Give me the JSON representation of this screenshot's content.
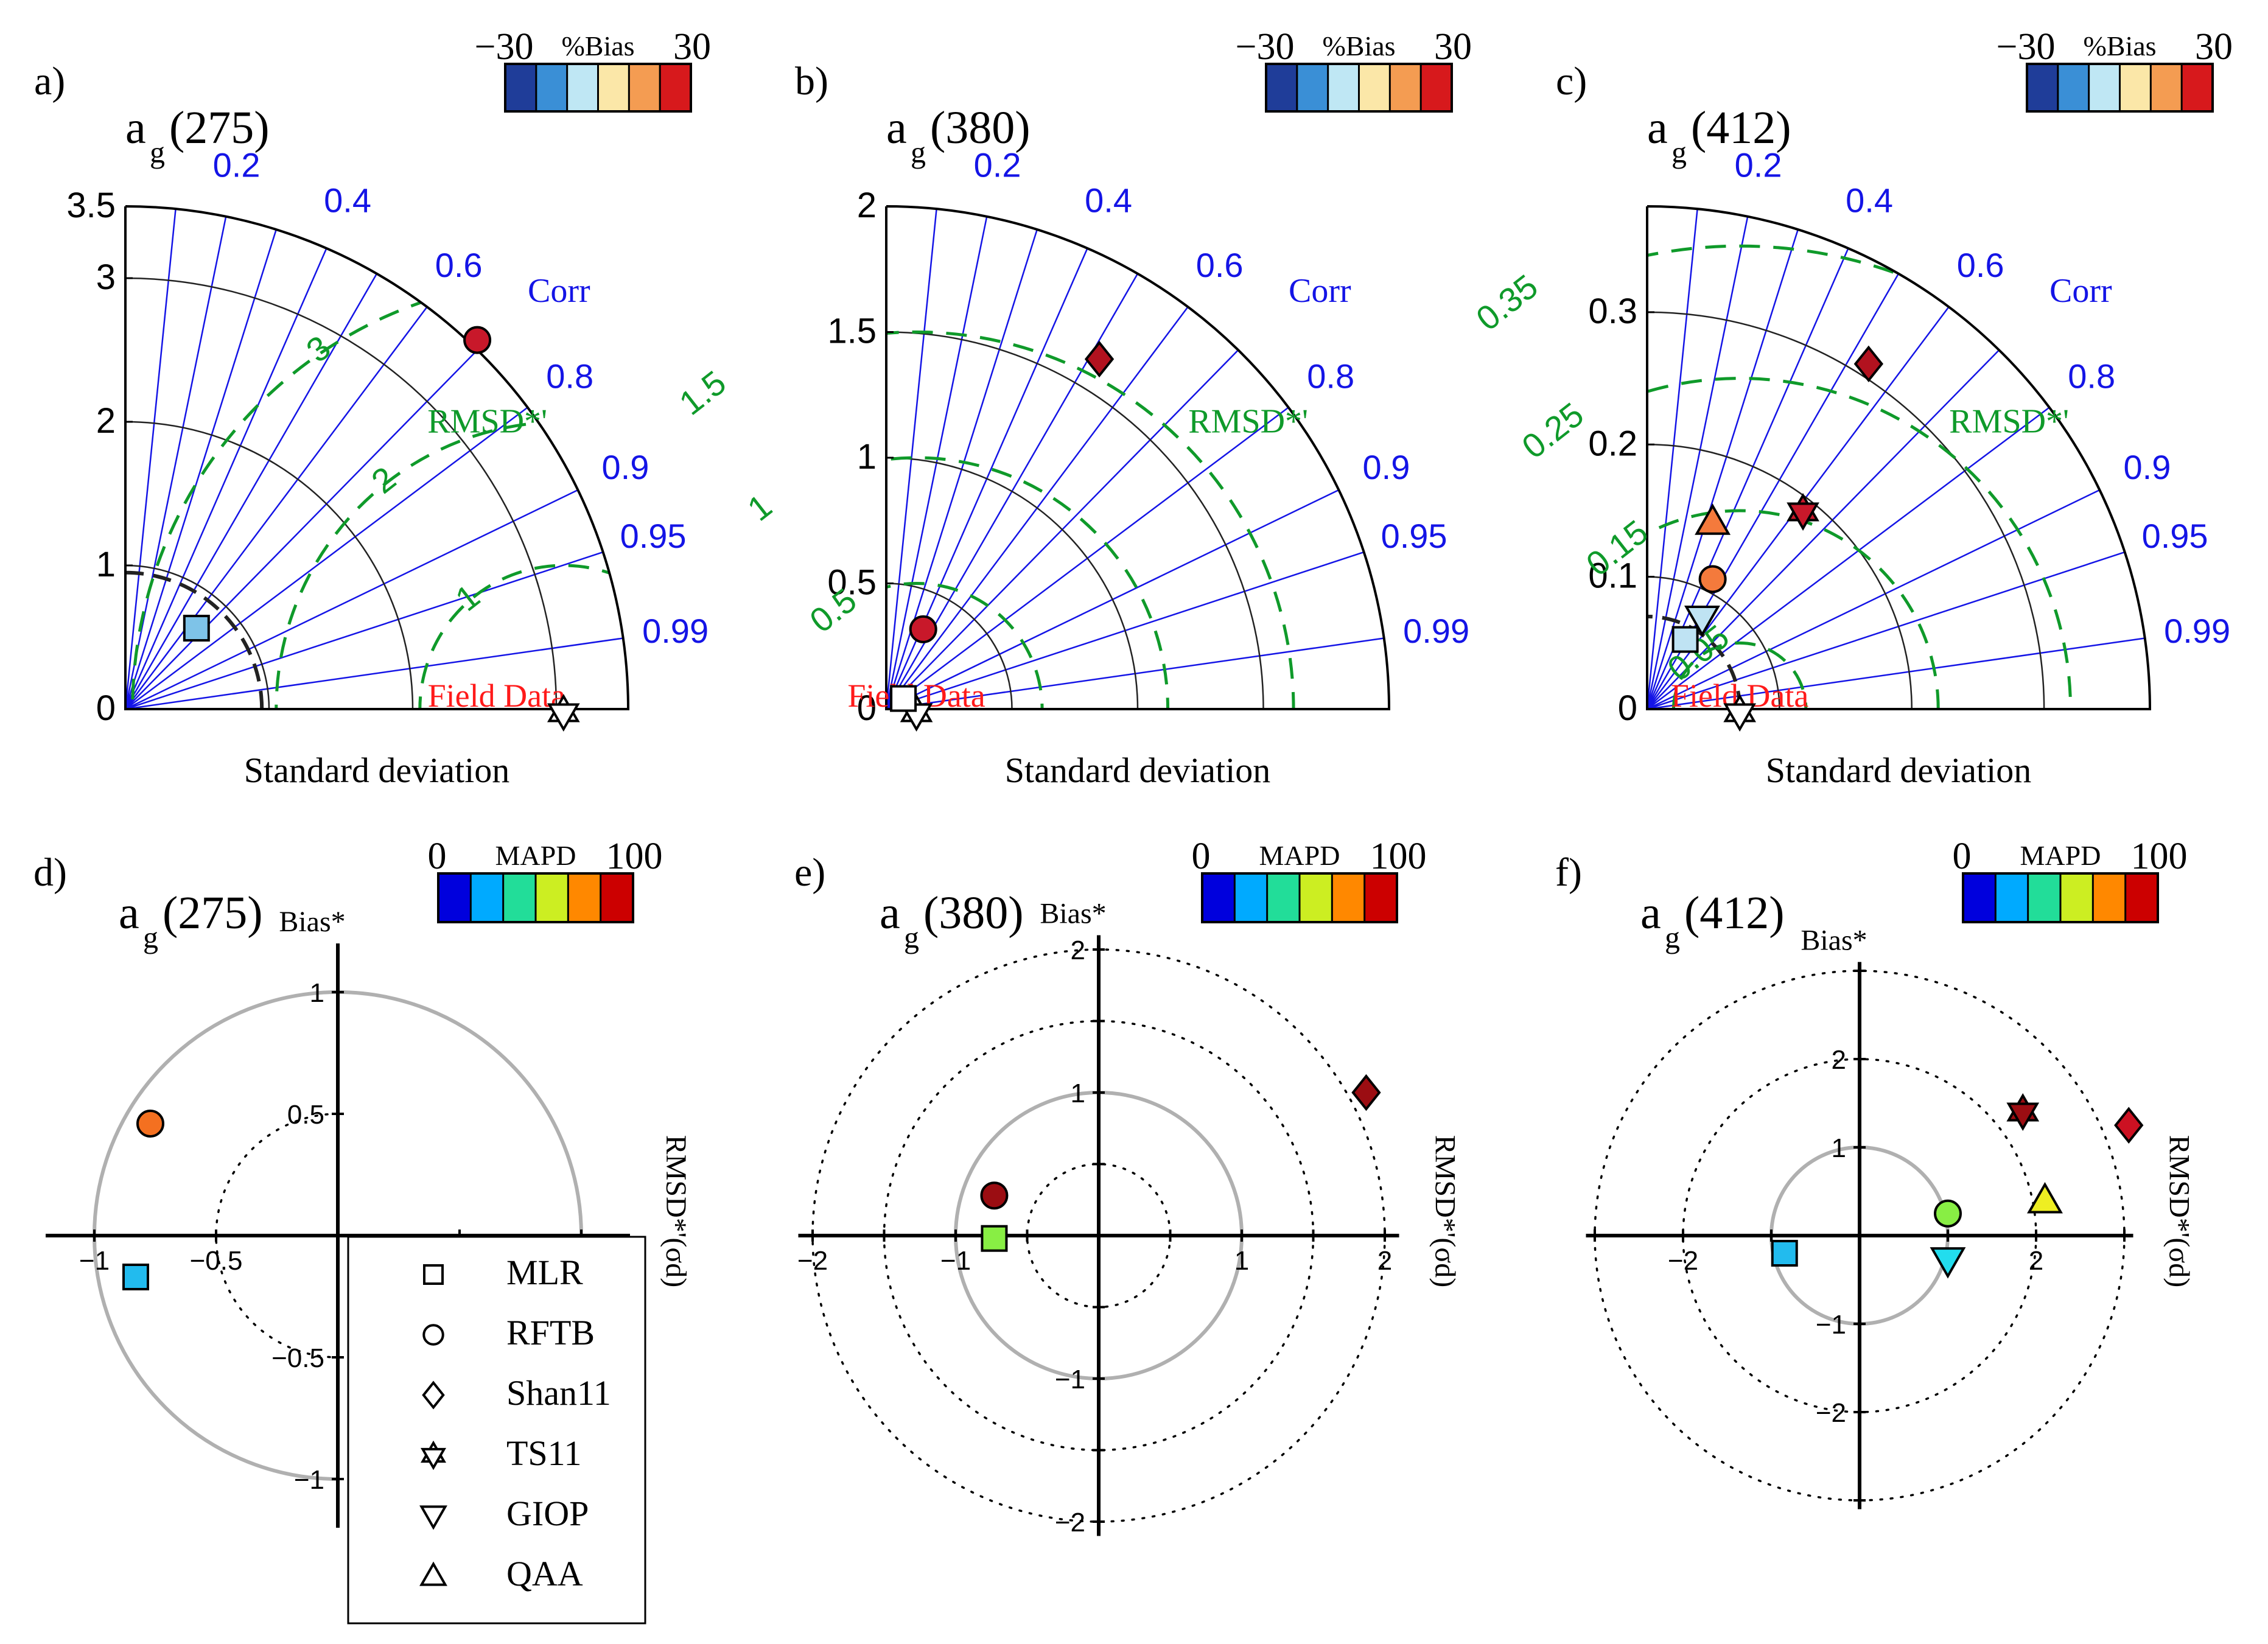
{
  "colors": {
    "corr_line": "#1414e6",
    "corr_text": "#1414e6",
    "rmsd_line": "#0f9a2a",
    "rmsd_text": "#0f9a2a",
    "field_text": "#ff1a1a",
    "grey_circle": "#b0b0b0",
    "std_circle": "#222222",
    "ref_arc": "#222222"
  },
  "text": {
    "corr_title": "Corr",
    "rmsd_title": "RMSD*'",
    "field_label": "Field Data",
    "std_xlabel": "Standard deviation",
    "bias_colorbar_title": "%Bias",
    "bias_colorbar_min": "−30",
    "bias_colorbar_max": "30",
    "mapd_colorbar_title": "MAPD",
    "mapd_colorbar_min": "0",
    "mapd_colorbar_max": "100",
    "target_ylabel": "Bias*",
    "target_xlabel": "RMSD*'(σd)",
    "title_a": "a",
    "title_g": "g"
  },
  "colorbars": {
    "bias": [
      "#1f3d99",
      "#3a8fd6",
      "#bfe7f4",
      "#fbe7a8",
      "#f49c52",
      "#d7191c"
    ],
    "mapd": [
      "#0000dd",
      "#00aaff",
      "#22dd99",
      "#ccee22",
      "#ff8800",
      "#cc0000"
    ]
  },
  "legend": [
    {
      "label": "MLR",
      "marker": "square"
    },
    {
      "label": "RFTB",
      "marker": "circle"
    },
    {
      "label": "Shan11",
      "marker": "diamond"
    },
    {
      "label": "TS11",
      "marker": "star"
    },
    {
      "label": "GIOP",
      "marker": "triangle-down"
    },
    {
      "label": "QAA",
      "marker": "triangle-up"
    }
  ],
  "chart_data": [
    {
      "type": "taylor",
      "panel": "a)",
      "band": "(275)",
      "max_std": 3.5,
      "std_ticks": [
        "0",
        "1",
        "2",
        "3",
        "3.5"
      ],
      "std_tick_values": [
        0,
        1,
        2,
        3,
        3.5
      ],
      "std_circles": [
        1,
        2,
        3
      ],
      "ref_std": 3.05,
      "corr_ticks": [
        "0.2",
        "0.4",
        "0.6",
        "0.8",
        "0.9",
        "0.95",
        "0.99"
      ],
      "corr_values": [
        0.2,
        0.4,
        0.6,
        0.8,
        0.9,
        0.95,
        0.99
      ],
      "corr_lines": [
        0.1,
        0.2,
        0.3,
        0.4,
        0.5,
        0.6,
        0.7,
        0.8,
        0.9,
        0.95,
        0.99
      ],
      "rmsd_labels": [
        "1",
        "2",
        "3"
      ],
      "rmsd_values": [
        1,
        2,
        3
      ],
      "dashed_arc": 0.95,
      "points": [
        {
          "model": "MLR",
          "marker": "square",
          "color": "#7ec3e8",
          "std": 0.75,
          "corr": 0.66
        },
        {
          "model": "RFTB",
          "marker": "circle",
          "color": "#c8182a",
          "std": 3.55,
          "corr": 0.69
        }
      ]
    },
    {
      "type": "taylor",
      "panel": "b)",
      "band": "(380)",
      "max_std": 2,
      "std_ticks": [
        "0",
        "0.5",
        "1",
        "1.5",
        "2"
      ],
      "std_tick_values": [
        0,
        0.5,
        1,
        1.5,
        2
      ],
      "std_circles": [
        0.5,
        1,
        1.5
      ],
      "ref_std": 0.12,
      "corr_ticks": [
        "0.2",
        "0.4",
        "0.6",
        "0.8",
        "0.9",
        "0.95",
        "0.99"
      ],
      "corr_values": [
        0.2,
        0.4,
        0.6,
        0.8,
        0.9,
        0.95,
        0.99
      ],
      "corr_lines": [
        0.1,
        0.2,
        0.3,
        0.4,
        0.5,
        0.6,
        0.7,
        0.8,
        0.9,
        0.95,
        0.99
      ],
      "rmsd_labels": [
        "0.5",
        "1",
        "1.5"
      ],
      "rmsd_values": [
        0.5,
        1,
        1.5
      ],
      "dashed_arc": 0,
      "points": [
        {
          "model": "MLR",
          "marker": "square",
          "color": "#ffffff",
          "std": 0.08,
          "corr": 0.85
        },
        {
          "model": "RFTB",
          "marker": "circle",
          "color": "#c8182a",
          "std": 0.35,
          "corr": 0.42
        },
        {
          "model": "Shan11",
          "marker": "diamond",
          "color": "#b2121f",
          "std": 1.63,
          "corr": 0.52
        }
      ]
    },
    {
      "type": "taylor",
      "panel": "c)",
      "band": "(412)",
      "max_std": 0.38,
      "std_ticks": [
        "0",
        "0.1",
        "0.2",
        "0.3"
      ],
      "std_tick_values": [
        0,
        0.1,
        0.2,
        0.3
      ],
      "std_circles": [
        0.1,
        0.2,
        0.3
      ],
      "ref_std": 0.07,
      "corr_ticks": [
        "0.2",
        "0.4",
        "0.6",
        "0.8",
        "0.9",
        "0.95",
        "0.99"
      ],
      "corr_values": [
        0.2,
        0.4,
        0.6,
        0.8,
        0.9,
        0.95,
        0.99
      ],
      "corr_lines": [
        0.1,
        0.2,
        0.3,
        0.4,
        0.5,
        0.6,
        0.7,
        0.8,
        0.9,
        0.95,
        0.99
      ],
      "rmsd_labels": [
        "0.05",
        "0.15",
        "0.25",
        "0.35"
      ],
      "rmsd_values": [
        0.05,
        0.15,
        0.25,
        0.35
      ],
      "dashed_arc": 0.07,
      "points": [
        {
          "model": "MLR",
          "marker": "square",
          "color": "#bfe3f3",
          "std": 0.06,
          "corr": 0.48
        },
        {
          "model": "GIOP",
          "marker": "triangle-down",
          "color": "#bfe3f3",
          "std": 0.08,
          "corr": 0.52
        },
        {
          "model": "RFTB",
          "marker": "circle",
          "color": "#f47a3c",
          "std": 0.11,
          "corr": 0.45
        },
        {
          "model": "QAA",
          "marker": "triangle-up",
          "color": "#f47a3c",
          "std": 0.15,
          "corr": 0.33
        },
        {
          "model": "TS11",
          "marker": "star",
          "color": "#c8182a",
          "std": 0.19,
          "corr": 0.62
        },
        {
          "model": "Shan11",
          "marker": "diamond",
          "color": "#b2121f",
          "std": 0.31,
          "corr": 0.54
        }
      ]
    },
    {
      "type": "target",
      "panel": "d)",
      "band": "(275)",
      "half": true,
      "range": [
        -1.2,
        1.2
      ],
      "ring_values": [
        0.5,
        1
      ],
      "tick_values": [
        -1,
        -0.5,
        0.5,
        1
      ],
      "x_tick_labels": [
        "−1",
        "−0.5"
      ],
      "y_tick_labels": [
        "1",
        "0.5",
        "−0.5",
        "−1"
      ],
      "points": [
        {
          "model": "RFTB",
          "marker": "circle",
          "color": "#f47020",
          "x": -0.77,
          "y": 0.46
        },
        {
          "model": "MLR",
          "marker": "square",
          "color": "#22bbee",
          "x": -0.83,
          "y": -0.17
        }
      ]
    },
    {
      "type": "target",
      "panel": "e)",
      "band": "(380)",
      "half": false,
      "range": [
        -2.1,
        2.1
      ],
      "ring_values": [
        0.5,
        1,
        1.5,
        2
      ],
      "tick_values": [
        -2,
        -1.5,
        -1,
        -0.5,
        0.5,
        1,
        1.5,
        2
      ],
      "x_tick_labels": [
        "−2",
        "−1",
        "1",
        "2"
      ],
      "y_tick_labels": [
        "2",
        "1",
        "−1",
        "−2"
      ],
      "points": [
        {
          "model": "Shan11",
          "marker": "diamond",
          "color": "#9b0d12",
          "x": 1.87,
          "y": 1.0
        },
        {
          "model": "RFTB",
          "marker": "circle",
          "color": "#9b0d12",
          "x": -0.73,
          "y": 0.28
        },
        {
          "model": "MLR",
          "marker": "square",
          "color": "#88ee44",
          "x": -0.73,
          "y": -0.02
        }
      ]
    },
    {
      "type": "target",
      "panel": "f)",
      "band": "(412)",
      "half": false,
      "range": [
        -3.1,
        3.1
      ],
      "ring_values": [
        1,
        2,
        3
      ],
      "tick_values": [
        -3,
        -2,
        -1,
        1,
        2,
        3
      ],
      "x_tick_labels": [
        "−2",
        "2"
      ],
      "y_tick_labels": [
        "2",
        "1",
        "−1",
        "−2"
      ],
      "points": [
        {
          "model": "TS11",
          "marker": "star",
          "color": "#9b0d12",
          "x": 1.85,
          "y": 1.4
        },
        {
          "model": "Shan11",
          "marker": "diamond",
          "color": "#cc1122",
          "x": 3.05,
          "y": 1.25
        },
        {
          "model": "QAA",
          "marker": "triangle-up",
          "color": "#eeee22",
          "x": 2.1,
          "y": 0.4
        },
        {
          "model": "RFTB",
          "marker": "circle",
          "color": "#88ee44",
          "x": 1.0,
          "y": 0.25
        },
        {
          "model": "GIOP",
          "marker": "triangle-down",
          "color": "#22ddee",
          "x": 1.0,
          "y": -0.28
        },
        {
          "model": "MLR",
          "marker": "square",
          "color": "#22bbee",
          "x": -0.85,
          "y": -0.2
        }
      ]
    }
  ]
}
